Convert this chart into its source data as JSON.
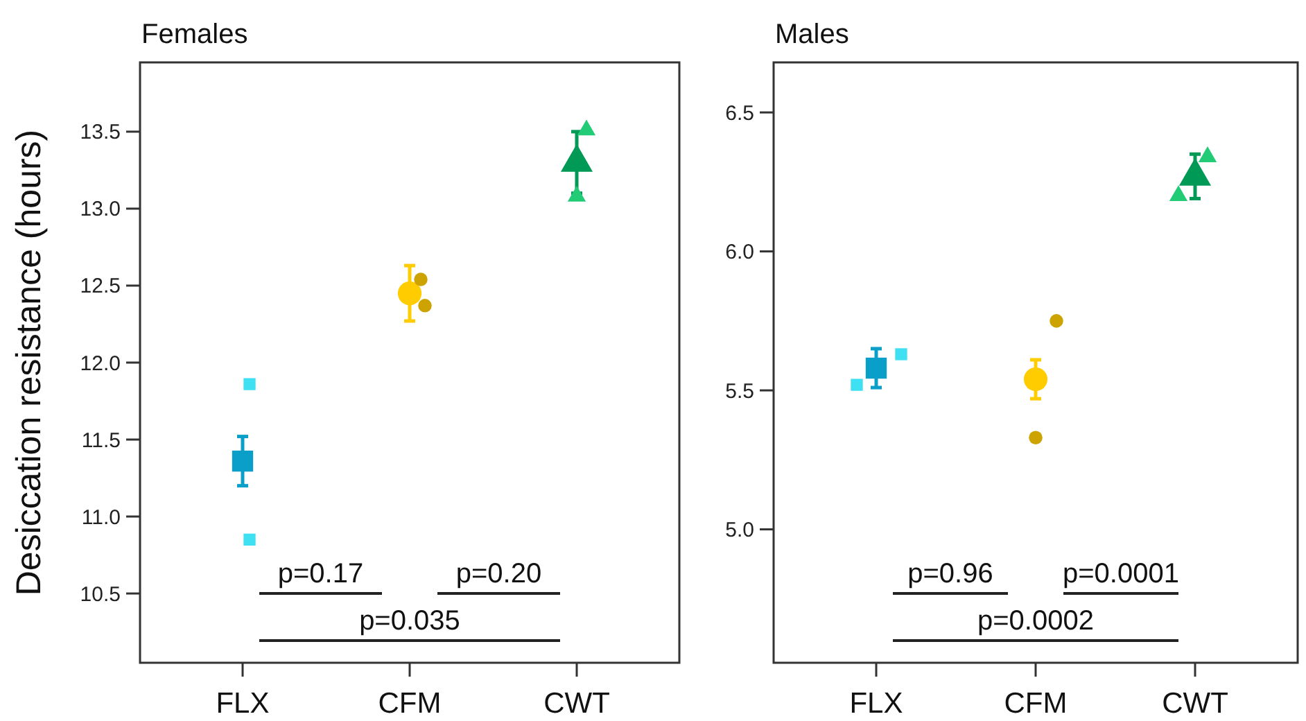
{
  "chart_data": [
    {
      "type": "scatter",
      "title": "Females",
      "ylabel": "Desiccation resistance (hours)",
      "categories": [
        "FLX",
        "CFM",
        "CWT"
      ],
      "ylim": [
        10.05,
        13.95
      ],
      "yticks": [
        10.5,
        {
          "value": 11,
          "label": "11.0"
        },
        11.5,
        {
          "value": 12,
          "label": "12.0"
        },
        12.5,
        {
          "value": 13,
          "label": "13.0"
        },
        13.5
      ],
      "grid": false,
      "annotations": [
        "p=0.17",
        "p=0.20",
        "p=0.035"
      ],
      "series": [
        {
          "x": [
            "FLX"
          ],
          "values": [
            11.36
          ],
          "errors": [
            0.16
          ],
          "color": "#0a9fc9",
          "marker": "square"
        },
        {
          "x": [
            "FLX",
            "FLX"
          ],
          "values": [
            11.86,
            10.85
          ],
          "color": "#3ee0f2",
          "marker": "square"
        },
        {
          "x": [
            "CFM"
          ],
          "values": [
            12.45
          ],
          "errors": [
            0.18
          ],
          "color": "#ffcc00",
          "marker": "circle"
        },
        {
          "x": [
            "CFM",
            "CFM"
          ],
          "values": [
            12.54,
            12.37
          ],
          "color": "#cca300",
          "marker": "circle"
        },
        {
          "x": [
            "CWT"
          ],
          "values": [
            13.3
          ],
          "errors": [
            0.2
          ],
          "color": "#009955",
          "marker": "triangle"
        },
        {
          "x": [
            "CWT",
            "CWT"
          ],
          "values": [
            13.51,
            13.08
          ],
          "color": "#22cc77",
          "marker": "triangle"
        }
      ]
    },
    {
      "type": "scatter",
      "title": "Males",
      "categories": [
        "FLX",
        "CFM",
        "CWT"
      ],
      "ylim": [
        4.52,
        6.68
      ],
      "yticks": [
        {
          "value": 5,
          "label": "5.0"
        },
        5.5,
        {
          "value": 6,
          "label": "6.0"
        },
        6.5
      ],
      "grid": false,
      "annotations": [
        "p=0.96",
        "p=0.0001",
        "p=0.0002"
      ],
      "series": [
        {
          "x": [
            "FLX"
          ],
          "values": [
            5.58
          ],
          "errors": [
            0.07
          ],
          "color": "#0a9fc9",
          "marker": "square"
        },
        {
          "x": [
            "FLX",
            "FLX"
          ],
          "values": [
            5.52,
            5.63
          ],
          "color": "#3ee0f2",
          "marker": "square"
        },
        {
          "x": [
            "CFM"
          ],
          "values": [
            5.54
          ],
          "errors": [
            0.07
          ],
          "color": "#ffcc00",
          "marker": "circle"
        },
        {
          "x": [
            "CFM",
            "CFM"
          ],
          "values": [
            5.75,
            5.33
          ],
          "color": "#cca300",
          "marker": "circle"
        },
        {
          "x": [
            "CWT"
          ],
          "values": [
            6.27
          ],
          "errors": [
            0.08
          ],
          "color": "#009955",
          "marker": "triangle"
        },
        {
          "x": [
            "CWT",
            "CWT"
          ],
          "values": [
            6.34,
            6.2
          ],
          "color": "#22cc77",
          "marker": "triangle"
        }
      ]
    }
  ]
}
